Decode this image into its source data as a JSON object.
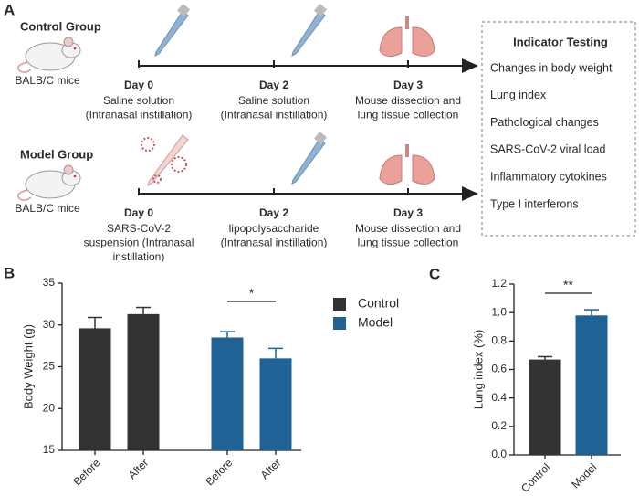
{
  "panel_a": {
    "label": "A",
    "groups": [
      {
        "name": "Control Group",
        "mouse": "BALB/C mice",
        "steps": [
          {
            "day": "Day 0",
            "lines": [
              "Saline solution",
              "(Intranasal instillation)"
            ]
          },
          {
            "day": "Day 2",
            "lines": [
              "Saline solution",
              "(Intranasal instillation)"
            ]
          },
          {
            "day": "Day 3",
            "lines": [
              "Mouse dissection and",
              "lung tissue collection"
            ]
          }
        ]
      },
      {
        "name": "Model Group",
        "mouse": "BALB/C mice",
        "steps": [
          {
            "day": "Day 0",
            "lines": [
              "SARS-CoV-2",
              "suspension (Intranasal",
              "instillation)"
            ]
          },
          {
            "day": "Day 2",
            "lines": [
              "lipopolysaccharide",
              "(Intranasal instillation)"
            ]
          },
          {
            "day": "Day 3",
            "lines": [
              "Mouse dissection and",
              "lung tissue collection"
            ]
          }
        ]
      }
    ],
    "indicators": {
      "title": "Indicator Testing",
      "items": [
        "Changes in body weight",
        "Lung index",
        "Pathological changes",
        "SARS-CoV-2 viral load",
        "Inflammatory cytokines",
        "Type I interferons"
      ]
    }
  },
  "chart_data": [
    {
      "type": "bar",
      "panel": "B",
      "y_label": "Body Weight (g)",
      "categories": [
        "Before",
        "After",
        "Before",
        "After"
      ],
      "series": [
        {
          "name": "Control",
          "color": "#333333",
          "values": [
            29.6,
            31.3,
            null,
            null
          ],
          "errors": [
            1.3,
            0.8,
            null,
            null
          ]
        },
        {
          "name": "Model",
          "color": "#1f6396",
          "values": [
            null,
            null,
            28.5,
            26
          ],
          "errors": [
            null,
            null,
            0.7,
            1.2
          ]
        }
      ],
      "ylim": [
        15,
        35
      ],
      "yticks": [
        15,
        20,
        25,
        30,
        35
      ],
      "significance": "*"
    },
    {
      "type": "bar",
      "panel": "C",
      "y_label": "Lung index (%)",
      "categories": [
        "Control",
        "Model"
      ],
      "series": [
        {
          "colors": [
            "#333333",
            "#1f6396"
          ],
          "values": [
            0.67,
            0.98
          ],
          "errors": [
            0.02,
            0.04
          ]
        }
      ],
      "ylim": [
        0,
        1.2
      ],
      "yticks": [
        {
          "value": 0,
          "label": "0.0"
        },
        0.2,
        0.4,
        0.6,
        0.8,
        {
          "value": 1,
          "label": "1.0"
        },
        1.2
      ],
      "significance": "**"
    }
  ]
}
